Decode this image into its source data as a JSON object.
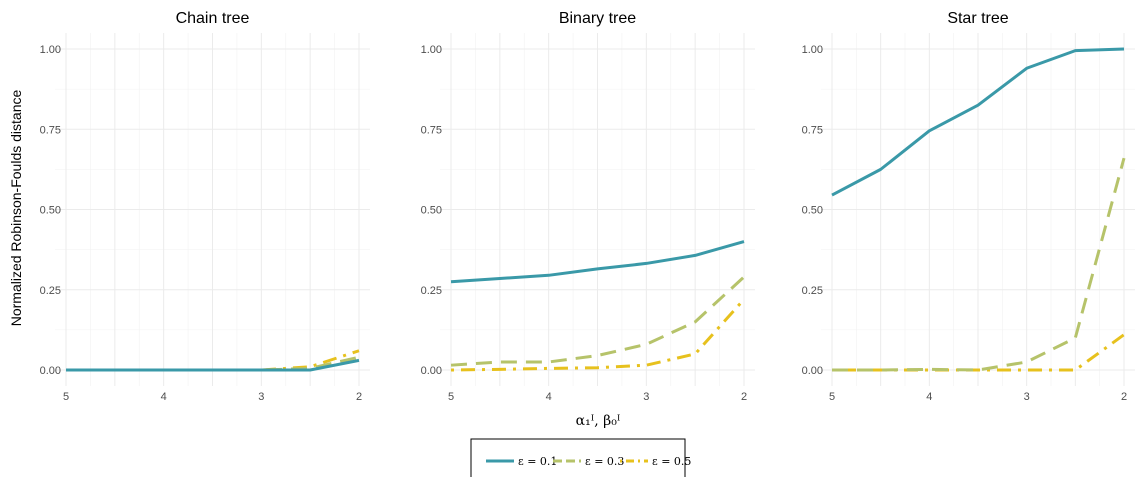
{
  "chart_data": {
    "type": "line",
    "ylabel": "Normalized Robinson-Foulds distance",
    "xlabel": "α₁ᴵ, β₀ᴵ",
    "x_axis_reversed": true,
    "xlim": [
      5,
      2
    ],
    "ylim": [
      0,
      1
    ],
    "x_ticks": [
      "5",
      "4",
      "3",
      "2"
    ],
    "y_ticks": [
      "0.00",
      "0.25",
      "0.50",
      "0.75",
      "1.00"
    ],
    "grid": true,
    "legend_position": "bottom",
    "x": [
      5,
      4.5,
      4,
      3.5,
      3,
      2.5,
      2
    ],
    "series_styles": [
      {
        "name": "ε = 0.1",
        "color": "#3a99a8",
        "linestyle": "solid"
      },
      {
        "name": "ε = 0.3",
        "color": "#b6c36a",
        "linestyle": "dashed"
      },
      {
        "name": "ε = 0.5",
        "color": "#e7c11d",
        "linestyle": "dotdash"
      }
    ],
    "panels": [
      {
        "title": "Chain tree",
        "series": [
          {
            "name": "ε = 0.1",
            "values": [
              0.0,
              0.0,
              0.0,
              0.0,
              0.0,
              0.0,
              0.03
            ]
          },
          {
            "name": "ε = 0.3",
            "values": [
              0.0,
              0.0,
              0.0,
              0.0,
              0.0,
              0.005,
              0.04
            ]
          },
          {
            "name": "ε = 0.5",
            "values": [
              0.0,
              0.0,
              0.0,
              0.0,
              0.0,
              0.01,
              0.06
            ]
          }
        ]
      },
      {
        "title": "Binary tree",
        "series": [
          {
            "name": "ε = 0.1",
            "values": [
              0.275,
              0.285,
              0.295,
              0.315,
              0.332,
              0.357,
              0.4
            ]
          },
          {
            "name": "ε = 0.3",
            "values": [
              0.015,
              0.025,
              0.025,
              0.045,
              0.08,
              0.15,
              0.29
            ]
          },
          {
            "name": "ε = 0.5",
            "values": [
              0.0,
              0.002,
              0.005,
              0.007,
              0.015,
              0.05,
              0.22
            ]
          }
        ]
      },
      {
        "title": "Star tree",
        "series": [
          {
            "name": "ε = 0.1",
            "values": [
              0.545,
              0.625,
              0.745,
              0.825,
              0.94,
              0.995,
              1.0
            ]
          },
          {
            "name": "ε = 0.3",
            "values": [
              0.0,
              0.0,
              0.002,
              0.0,
              0.025,
              0.1,
              0.66
            ]
          },
          {
            "name": "ε = 0.5",
            "values": [
              0.0,
              0.0,
              0.0,
              0.0,
              0.0,
              0.0,
              0.11
            ]
          }
        ]
      }
    ]
  }
}
